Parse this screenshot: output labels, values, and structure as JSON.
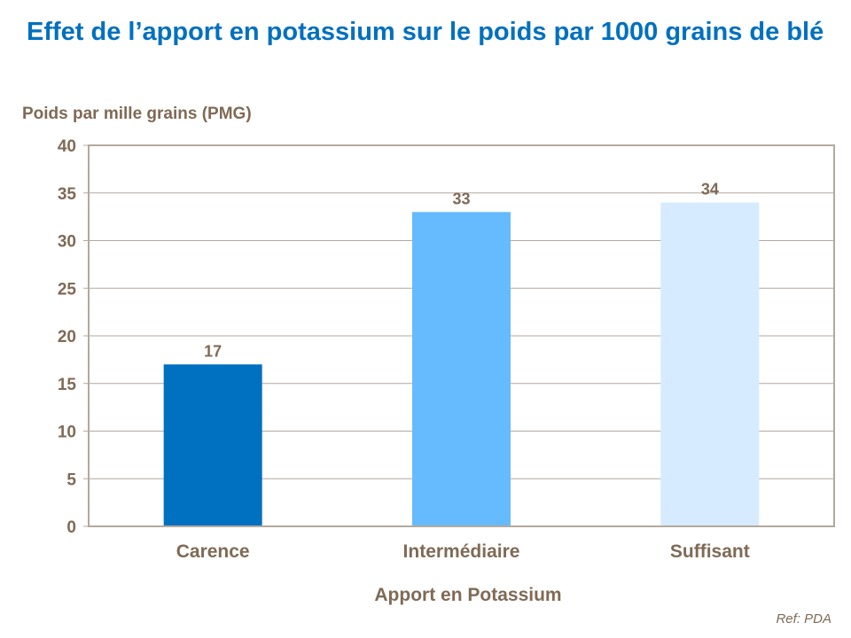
{
  "title": "Effet de l’apport en potassium sur le poids par 1000 grains de blé",
  "footnote": "Ref: PDA",
  "chart_data": {
    "type": "bar",
    "title": "Effet de l’apport en potassium sur le poids par 1000 grains de blé",
    "xlabel": "Apport en Potassium",
    "ylabel": "Poids par mille grains (PMG)",
    "categories": [
      "Carence",
      "Intermédiaire",
      "Suffisant"
    ],
    "values": [
      17,
      33,
      34
    ],
    "data_labels": [
      "17",
      "33",
      "34"
    ],
    "colors": [
      "#0070C0",
      "#66BBFF",
      "#D6EBFF"
    ],
    "ylim": [
      0,
      40
    ],
    "yticks": [
      0,
      5,
      10,
      15,
      20,
      25,
      30,
      35,
      40
    ],
    "grid": true,
    "legend": "none",
    "text_color": "#7F6A55",
    "axis_color": "#B3A99D"
  }
}
